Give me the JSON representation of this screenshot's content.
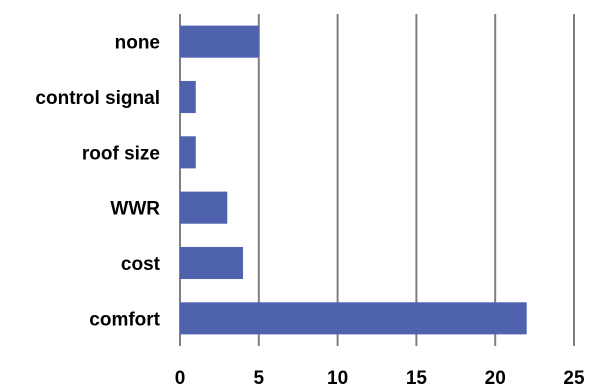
{
  "chart_data": {
    "type": "bar",
    "orientation": "horizontal",
    "categories": [
      "none",
      "control signal",
      "roof size",
      "WWR",
      "cost",
      "comfort"
    ],
    "values": [
      5,
      1,
      1,
      3,
      4,
      22
    ],
    "xlim": [
      0,
      25
    ],
    "xticks": [
      "0",
      "5",
      "10",
      "15",
      "20",
      "25"
    ],
    "grid": "vertical",
    "legend": "none",
    "bar_color": "#4f62ad",
    "grid_color": "#7f7f7f",
    "title": "",
    "xlabel": "",
    "ylabel": ""
  }
}
